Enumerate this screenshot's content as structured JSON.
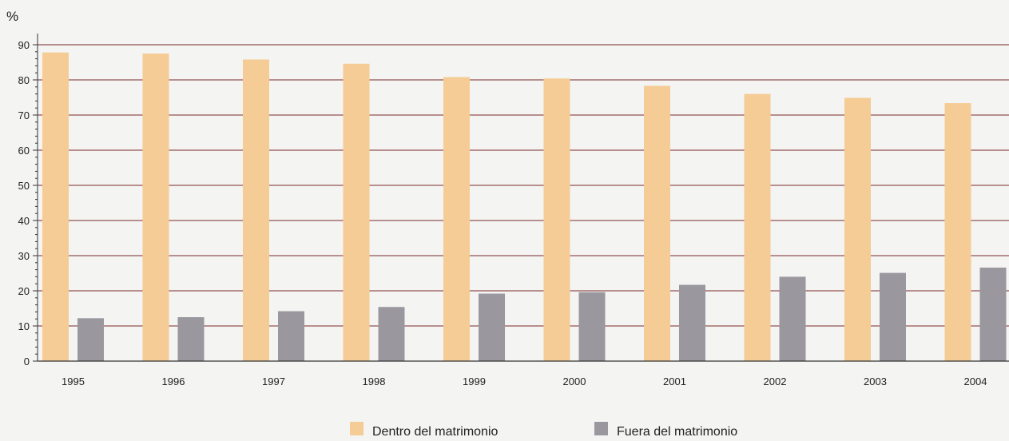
{
  "chart_data": {
    "type": "bar",
    "unit_label": "%",
    "categories": [
      "1995",
      "1996",
      "1997",
      "1998",
      "1999",
      "2000",
      "2001",
      "2002",
      "2003",
      "2004"
    ],
    "series": [
      {
        "name": "Dentro del matrimonio",
        "color": "#f5cc95",
        "values": [
          87.8,
          87.5,
          85.8,
          84.6,
          80.8,
          80.4,
          78.3,
          76.0,
          74.9,
          73.4
        ]
      },
      {
        "name": "Fuera del matrimonio",
        "color": "#9a979f",
        "values": [
          12.2,
          12.5,
          14.2,
          15.4,
          19.2,
          19.6,
          21.7,
          24.0,
          25.1,
          26.6
        ]
      }
    ],
    "ylim": [
      0,
      90
    ],
    "yticks": [
      0,
      10,
      20,
      30,
      40,
      50,
      60,
      70,
      80,
      90
    ],
    "grid": true,
    "gridline_color": "#7a2a2a",
    "legend_position": "bottom-center",
    "xlabel": "",
    "ylabel": ""
  }
}
